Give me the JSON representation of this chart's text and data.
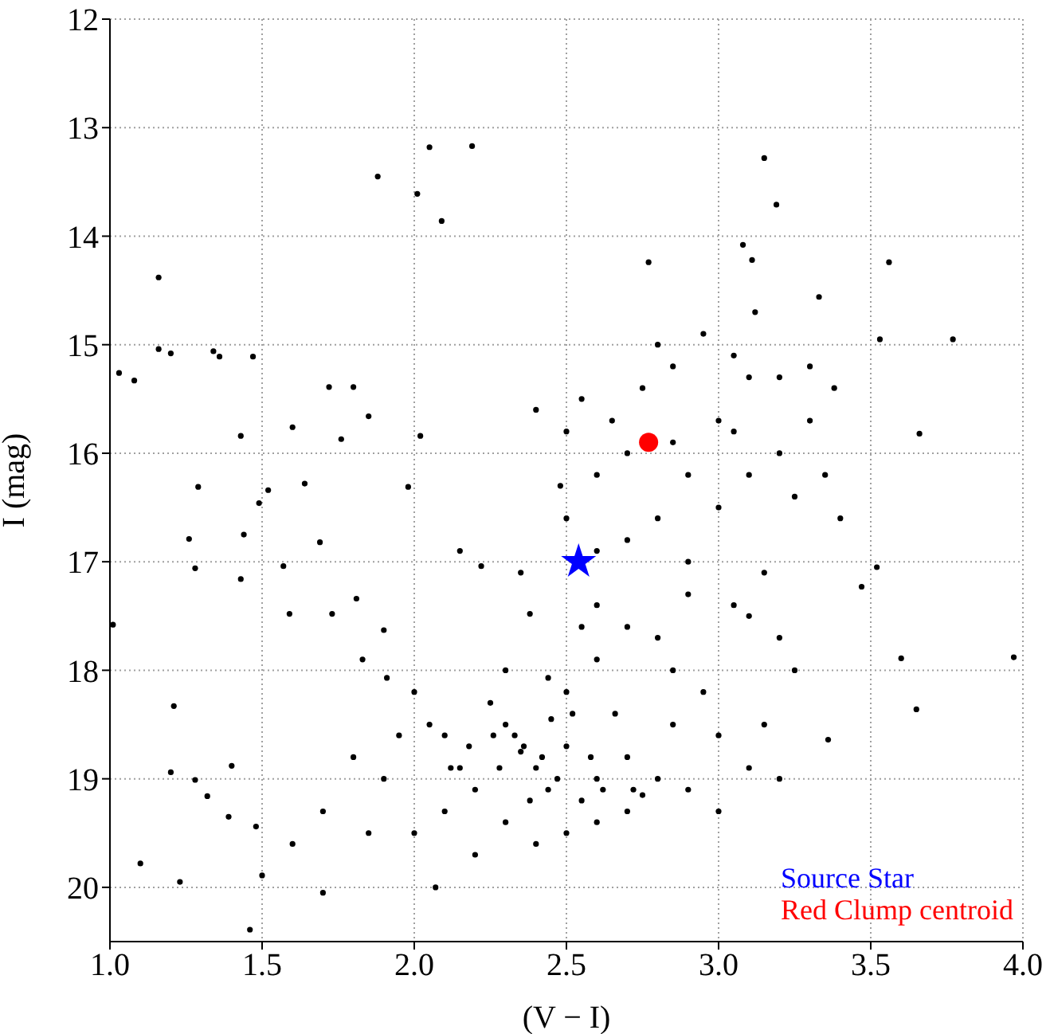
{
  "chart_data": {
    "type": "scatter",
    "xlabel": "(V − I)",
    "ylabel": "I (mag)",
    "xlim": [
      1.0,
      4.0
    ],
    "ylim": [
      20.5,
      12
    ],
    "xticks": [
      {
        "value": 1.0,
        "label": "1.0"
      },
      {
        "value": 1.5,
        "label": "1.5"
      },
      {
        "value": 2.0,
        "label": "2.0"
      },
      {
        "value": 2.5,
        "label": "2.5"
      },
      {
        "value": 3.0,
        "label": "3.0"
      },
      {
        "value": 3.5,
        "label": "3.5"
      },
      {
        "value": 4.0,
        "label": "4.0"
      }
    ],
    "yticks": [
      12,
      13,
      14,
      15,
      16,
      17,
      18,
      19,
      20
    ],
    "grid": true,
    "legend": "bottom right",
    "series": [
      {
        "color": "#000000",
        "marker": "circle",
        "x": [
          1.03,
          1.01,
          1.08,
          1.16,
          1.16,
          1.2,
          1.34,
          1.36,
          1.47,
          2.05,
          2.19,
          1.88,
          2.01,
          2.09,
          2.77,
          3.08,
          3.11,
          3.15,
          3.19,
          3.33,
          3.56,
          3.53,
          3.77,
          3.66,
          3.97,
          3.6,
          3.47,
          3.52,
          3.65,
          3.36,
          1.23,
          1.1,
          1.46,
          1.5,
          1.2,
          1.21,
          1.28,
          1.32,
          1.39,
          1.4,
          1.48,
          1.26,
          1.28,
          1.29,
          1.43,
          1.44,
          1.43,
          1.49,
          1.52,
          1.6,
          1.72,
          1.8,
          1.76,
          1.85,
          1.64,
          1.69,
          1.57,
          1.59,
          1.73,
          1.81,
          1.83,
          1.91,
          1.9,
          2.02,
          1.98,
          2.15,
          2.22,
          2.38,
          2.44,
          2.0,
          2.1,
          2.2,
          2.3,
          2.4,
          2.5,
          2.6,
          2.7,
          2.8,
          2.3,
          2.5,
          2.7,
          2.9,
          2.1,
          1.9,
          1.8,
          1.7,
          1.6,
          1.7,
          2.07,
          2.2,
          2.4,
          2.6,
          2.85,
          2.95,
          2.5,
          2.3,
          2.6,
          2.7,
          2.6,
          2.55,
          1.95,
          2.25,
          2.45,
          2.35,
          2.55,
          2.75,
          2.15,
          2.0,
          1.85,
          3.0,
          3.1,
          3.0,
          2.85,
          2.8,
          2.9,
          3.1,
          3.2,
          3.25,
          3.15,
          3.2,
          2.6,
          2.7,
          2.85,
          2.9,
          3.0,
          3.05,
          2.8,
          2.7,
          2.9,
          3.1,
          3.2,
          3.25,
          3.3,
          3.2,
          3.1,
          3.0,
          2.85,
          2.75,
          2.65,
          2.55,
          2.5,
          2.48,
          2.5,
          2.6,
          2.95,
          3.05,
          3.12,
          3.3,
          3.38,
          3.35,
          3.4,
          3.15,
          3.05,
          2.8,
          2.4,
          2.35,
          2.33,
          2.42,
          2.28,
          2.47,
          2.38,
          2.52,
          2.62,
          2.18,
          2.12,
          2.66,
          2.72,
          2.05,
          2.58,
          2.44,
          2.36,
          2.26
        ],
        "values": [
          15.26,
          17.58,
          15.33,
          14.38,
          15.04,
          15.08,
          15.06,
          15.11,
          15.11,
          13.18,
          13.17,
          13.45,
          13.61,
          13.86,
          14.24,
          14.08,
          14.22,
          13.28,
          13.71,
          14.56,
          14.24,
          14.95,
          14.95,
          15.82,
          17.88,
          17.89,
          17.23,
          17.05,
          18.36,
          18.64,
          19.95,
          19.78,
          20.39,
          19.89,
          18.94,
          18.33,
          19.01,
          19.16,
          19.35,
          18.88,
          19.44,
          16.79,
          17.06,
          16.31,
          17.16,
          16.75,
          15.84,
          16.46,
          16.34,
          15.76,
          15.39,
          15.39,
          15.87,
          15.66,
          16.28,
          16.82,
          17.04,
          17.48,
          17.48,
          17.34,
          17.9,
          18.07,
          17.63,
          15.84,
          16.31,
          16.9,
          17.04,
          17.48,
          18.07,
          18.2,
          18.6,
          19.1,
          18.5,
          18.9,
          18.7,
          19.0,
          18.8,
          19.0,
          19.4,
          19.5,
          19.3,
          19.1,
          19.3,
          19.0,
          18.8,
          19.3,
          19.6,
          20.05,
          20.0,
          19.7,
          19.6,
          19.4,
          18.5,
          18.2,
          18.2,
          18.0,
          17.9,
          17.6,
          17.4,
          17.6,
          18.6,
          18.3,
          18.45,
          18.75,
          19.2,
          19.15,
          18.9,
          19.5,
          19.5,
          19.3,
          18.9,
          18.6,
          18.0,
          17.7,
          17.3,
          17.5,
          17.7,
          18.0,
          18.5,
          19.0,
          16.2,
          16.0,
          15.9,
          16.2,
          16.5,
          15.8,
          16.6,
          16.8,
          17.0,
          16.2,
          16.0,
          16.4,
          15.7,
          15.3,
          15.3,
          15.7,
          15.2,
          15.4,
          15.7,
          15.5,
          15.8,
          16.3,
          16.6,
          16.9,
          14.9,
          15.1,
          14.7,
          15.2,
          15.4,
          16.2,
          16.6,
          17.1,
          17.4,
          15.0,
          15.6,
          17.1,
          18.6,
          18.8,
          18.9,
          19.0,
          19.2,
          18.4,
          19.1,
          18.7,
          18.9,
          18.4,
          19.1,
          18.5,
          18.8,
          19.1,
          18.7,
          18.6
        ]
      },
      {
        "name": "Source Star",
        "color": "#0000ff",
        "marker": "star",
        "x": [
          2.54
        ],
        "values": [
          17.0
        ]
      },
      {
        "name": "Red Clump centroid",
        "color": "#ff0000",
        "marker": "circle",
        "x": [
          2.77
        ],
        "values": [
          15.9
        ]
      }
    ]
  }
}
